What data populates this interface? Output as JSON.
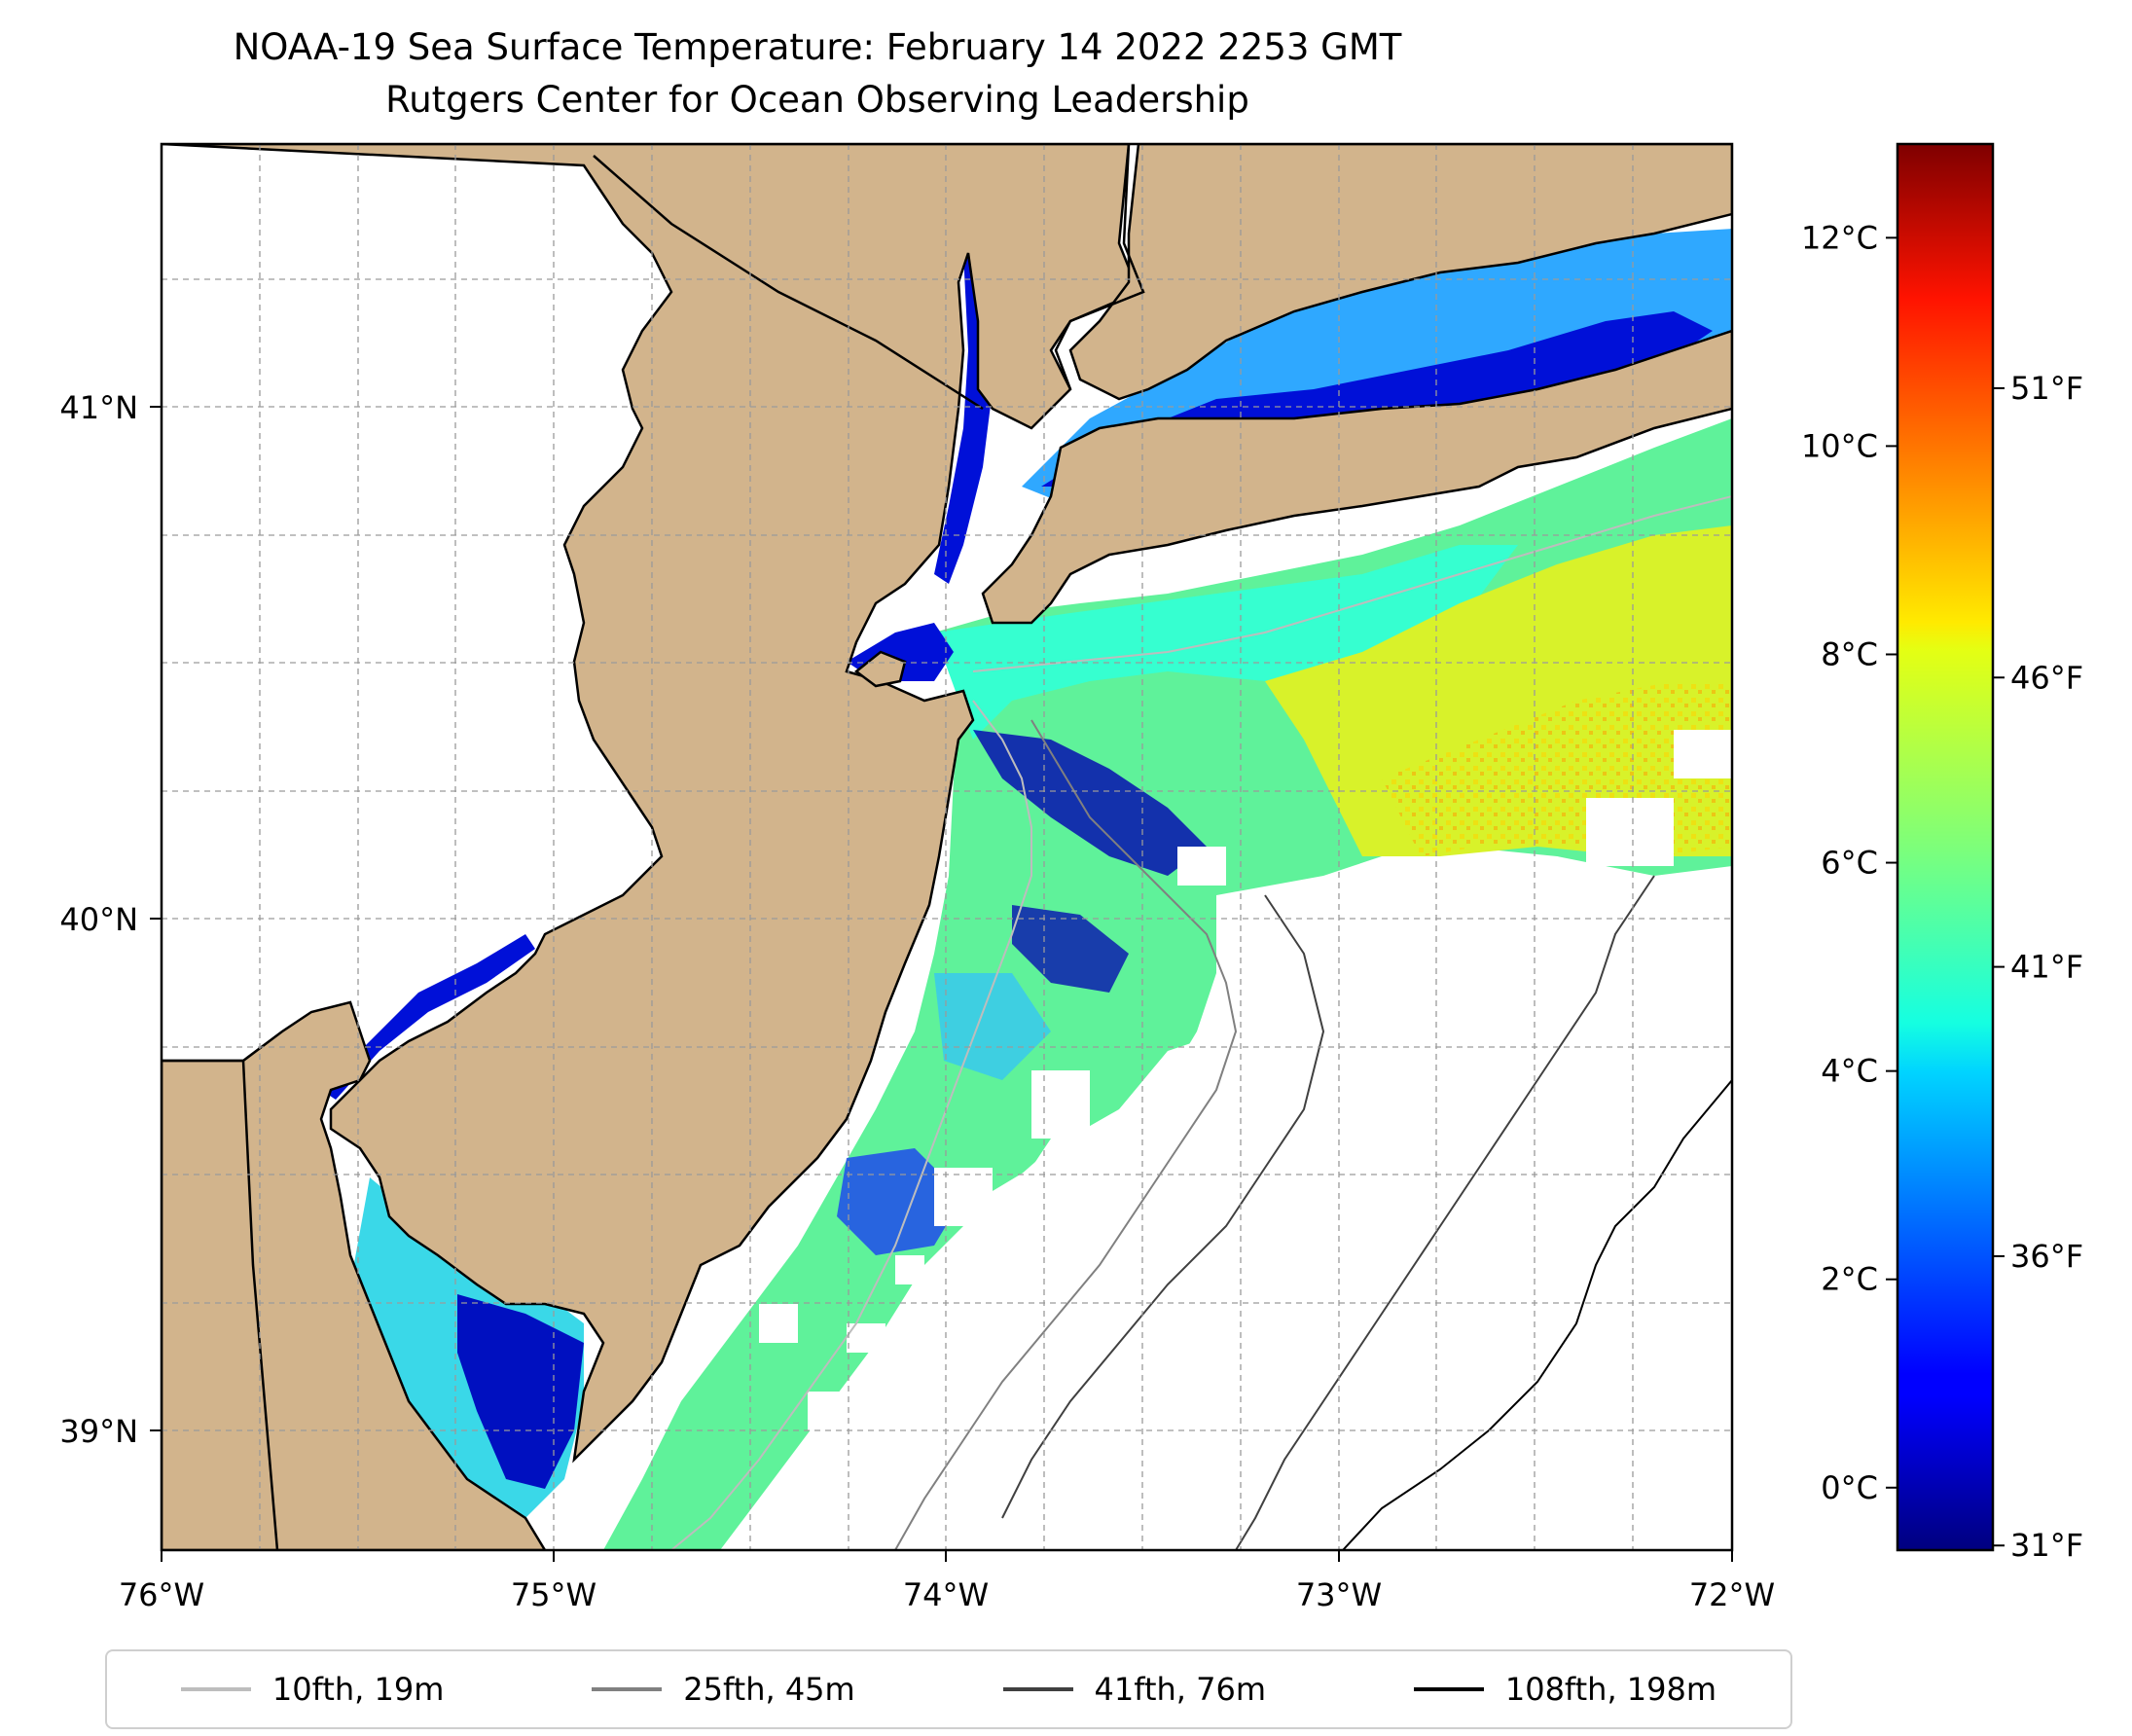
{
  "title_line1": "NOAA-19 Sea Surface Temperature: February 14 2022 2253 GMT",
  "title_line2": "Rutgers Center for Ocean Observing Leadership",
  "map": {
    "lon_ticks": [
      "76°W",
      "75°W",
      "74°W",
      "73°W",
      "72°W"
    ],
    "lat_ticks": [
      "41°N",
      "40°N",
      "39°N"
    ],
    "land_color": "#d2b48c",
    "no_data_color": "#ffffff",
    "grid": true
  },
  "colorbar": {
    "colormap": "jet",
    "celsius_ticks": [
      "12°C",
      "10°C",
      "8°C",
      "6°C",
      "4°C",
      "2°C",
      "0°C"
    ],
    "fahrenheit_ticks": [
      "51°F",
      "46°F",
      "41°F",
      "36°F",
      "31°F"
    ],
    "celsius_range": [
      -0.6,
      12.9
    ]
  },
  "legend": [
    {
      "label": "10fth, 19m",
      "color": "#bdbdbd"
    },
    {
      "label": "25fth, 45m",
      "color": "#808080"
    },
    {
      "label": "41fth, 76m",
      "color": "#404040"
    },
    {
      "label": "108fth, 198m",
      "color": "#000000"
    }
  ]
}
